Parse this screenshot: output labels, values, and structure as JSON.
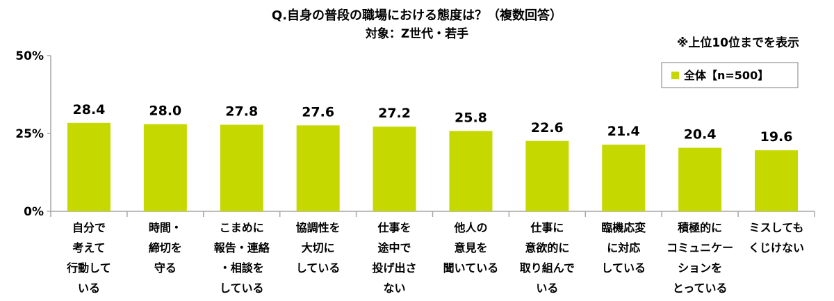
{
  "title": "Q.自身の普段の職場における態度は？（複数回答）",
  "subtitle": "対象：Z世代・若手",
  "note": "※上位10位までを表示",
  "colors": {
    "bar": "#c5d800",
    "axis": "#a6a6a6"
  },
  "chart_data": {
    "type": "bar",
    "title": "Q.自身の普段の職場における態度は？（複数回答）",
    "subtitle": "対象：Z世代・若手",
    "categories": [
      [
        "自分で",
        "考えて",
        "行動して",
        "いる"
      ],
      [
        "時間・",
        "締切を",
        "守る"
      ],
      [
        "こまめに",
        "報告・連絡",
        "・相談を",
        "している"
      ],
      [
        "協調性を",
        "大切に",
        "している"
      ],
      [
        "仕事を",
        "途中で",
        "投げ出さ",
        "ない"
      ],
      [
        "他人の",
        "意見を",
        "聞いている"
      ],
      [
        "仕事に",
        "意欲的に",
        "取り組んで",
        "いる"
      ],
      [
        "臨機応変",
        "に対応",
        "している"
      ],
      [
        "積極的に",
        "コミュニケー",
        "ションを",
        "とっている"
      ],
      [
        "ミスしても",
        "くじけない"
      ]
    ],
    "series": [
      {
        "name": "全体【n=500】",
        "values": [
          28.4,
          28.0,
          27.8,
          27.6,
          27.2,
          25.8,
          22.6,
          21.4,
          20.4,
          19.6
        ],
        "labels": [
          "28.4",
          "28.0",
          "27.8",
          "27.6",
          "27.2",
          "25.8",
          "22.6",
          "21.4",
          "20.4",
          "19.6"
        ]
      }
    ],
    "yticks": [
      "0%",
      "25%",
      "50%"
    ],
    "ylim": [
      0,
      50
    ],
    "legend_position": "top-right",
    "grid": false
  }
}
